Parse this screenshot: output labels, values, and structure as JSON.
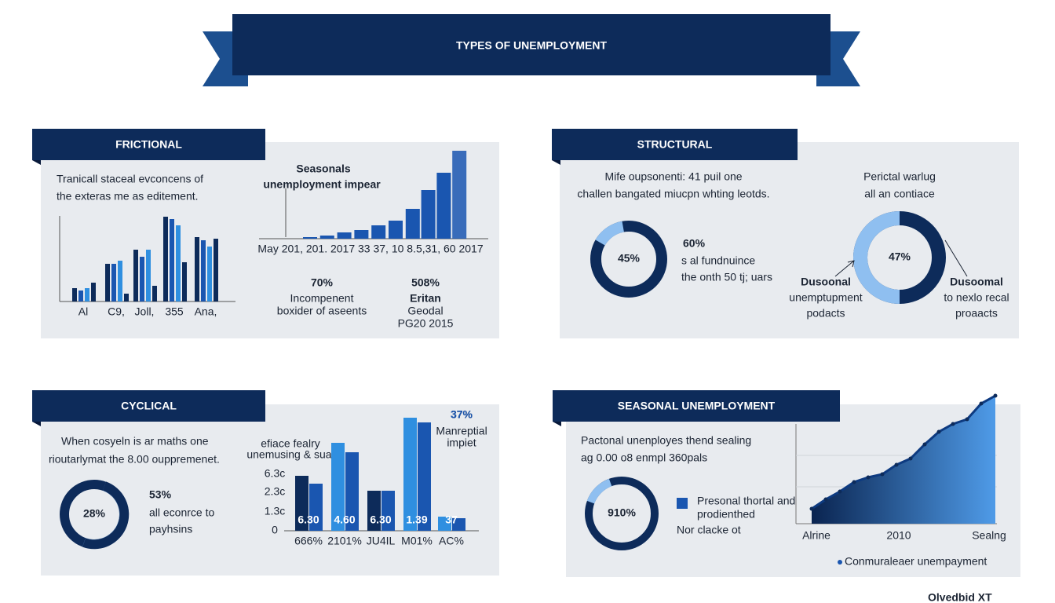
{
  "title": "TYPES OF UNEMPLOYMENT",
  "frictional": {
    "heading": "FRICTIONAL",
    "text": [
      "Tranicall staceal evconcens of",
      "the exteras me as editement."
    ],
    "chart": {
      "type": "bar",
      "categories": [
        "Al",
        "C9,",
        "Joll,",
        "355",
        "Ana,"
      ],
      "series": [
        {
          "color": "#0d2b5a",
          "values": [
            17,
            48,
            66,
            108,
            82
          ]
        },
        {
          "color": "#1a56b0",
          "values": [
            14,
            48,
            57,
            105,
            78
          ]
        },
        {
          "color": "#2f8fe0",
          "values": [
            17,
            52,
            66,
            97,
            70
          ]
        },
        {
          "color": "#0d2b5a",
          "values": [
            24,
            10,
            20,
            50,
            80
          ]
        }
      ]
    },
    "chart2": {
      "type": "bar",
      "title": [
        "Seasonals",
        "unemployment impear"
      ],
      "axis_label": "May 201, 201. 2017 33 37, 10 8.5,31, 60 2017",
      "color": "#1a56b0",
      "values": [
        2,
        4,
        8,
        11,
        17,
        23,
        38,
        62,
        84,
        112
      ]
    },
    "stats": [
      {
        "value": "70%",
        "lines": [
          "Incompenent",
          "boxider of aseents"
        ]
      },
      {
        "value": "508%",
        "lines": [
          "Eritan",
          "Geodal",
          "PG20 2015"
        ]
      }
    ]
  },
  "structural": {
    "heading": "STRUCTURAL",
    "text": [
      "Mife oupsonenti: 41 puil one",
      "challen bangated miucpn whting leotds."
    ],
    "donut1": "45%",
    "stat": {
      "value": "60%",
      "lines": [
        "s al fundnuince",
        "the onth 50 tj; uars"
      ]
    },
    "right_text": [
      "Perictal warlug",
      "all an contiace"
    ],
    "donut2": "47%",
    "left_label": [
      "Dusoonal",
      "unemptupment",
      "podacts"
    ],
    "right_label": [
      "Dusoomal",
      "to nexlo recal",
      "proaacts"
    ]
  },
  "cyclical": {
    "heading": "CYCLICAL",
    "text": [
      "When cosyeln is ar maths one",
      "rioutarlymat the 8.00 ouppremenet."
    ],
    "donut": "28%",
    "stat": {
      "value": "53%",
      "lines": [
        "all econrce to",
        "payhsins"
      ]
    },
    "chart": {
      "type": "bar",
      "title": [
        "efiace fealry",
        "unemusing & sual"
      ],
      "yticks": [
        "6.3c",
        "2.3c",
        "1.3c",
        "0"
      ],
      "categories": [
        "666%",
        "2101%",
        "JU4IL",
        "M01%",
        "AC%"
      ],
      "value_labels": [
        "6.30",
        "4.60",
        "6.30",
        "1.39",
        "37"
      ],
      "series": [
        {
          "color": [
            "#0d2b5a",
            "#2f8fe0",
            "#0d2b5a",
            "#2f8fe0",
            "#2f8fe0"
          ],
          "values": [
            70,
            112,
            51,
            144,
            18
          ]
        },
        {
          "color": "#1a56b0",
          "values": [
            60,
            100,
            51,
            138,
            16
          ]
        }
      ]
    },
    "callout": {
      "value": "37%",
      "lines": [
        "Manreptial",
        "impiet"
      ]
    }
  },
  "seasonal": {
    "heading": "SEASONAL UNEMPLOYMENT",
    "text": [
      "Pactonal unenployes thend sealing",
      "ag 0.00 o8 enmpl 360pals"
    ],
    "donut": "910%",
    "legend": [
      "Presonal thortal and",
      "prodienthed"
    ],
    "note": "Nor clacke ot",
    "chart": {
      "type": "area",
      "values": [
        19,
        31,
        41,
        53,
        59,
        63,
        75,
        83,
        101,
        117,
        127,
        133,
        153,
        163
      ],
      "x_labels": [
        "Alrine",
        "2010",
        "Sealng"
      ],
      "legend": "Conmuraleaer unempayment"
    }
  },
  "footer": "Olvedbid XT"
}
